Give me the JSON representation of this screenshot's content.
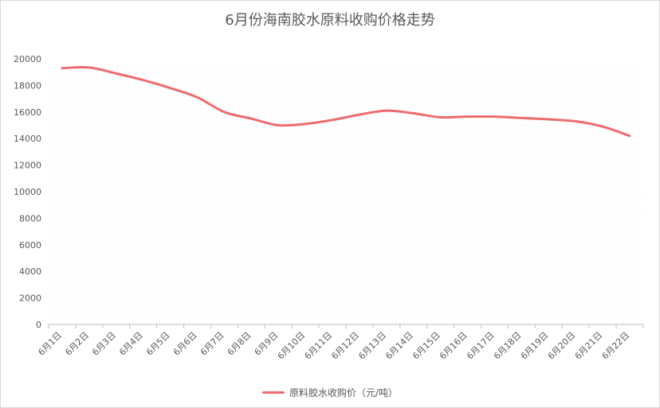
{
  "chart_data": {
    "type": "line",
    "title": "6月份海南胶水原料收购价格走势",
    "xlabel": "",
    "ylabel": "",
    "categories": [
      "6月1日",
      "6月2日",
      "6月3日",
      "6月4日",
      "6月5日",
      "6月6日",
      "6月7日",
      "6月8日",
      "6月9日",
      "6月10日",
      "6月11日",
      "6月12日",
      "6月13日",
      "6月14日",
      "6月15日",
      "6月16日",
      "6月17日",
      "6月18日",
      "6月19日",
      "6月20日",
      "6月21日",
      "6月22日"
    ],
    "ylim": [
      0,
      20000
    ],
    "yticks": [
      0,
      2000,
      4000,
      6000,
      8000,
      10000,
      12000,
      14000,
      16000,
      18000,
      20000
    ],
    "series": [
      {
        "name": "原料胶水收购价（元/吨）",
        "color": "#ee6b6b",
        "values": [
          19300,
          19350,
          18900,
          18400,
          17800,
          17100,
          16000,
          15500,
          15000,
          15100,
          15400,
          15800,
          16100,
          15900,
          15600,
          15650,
          15650,
          15550,
          15450,
          15300,
          14900,
          14200
        ]
      }
    ],
    "grid": false,
    "legend_position": "bottom"
  }
}
